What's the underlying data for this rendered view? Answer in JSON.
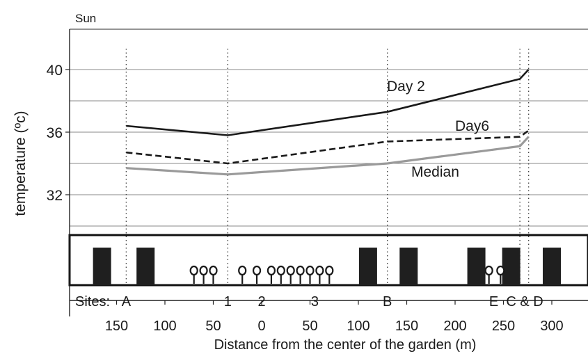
{
  "chart_data": {
    "type": "line",
    "panel_label": "Sun",
    "xlabel": "Distance from the center of the garden (m)",
    "ylabel": "temperature (ºc)",
    "ylim": [
      28,
      42
    ],
    "y_ticks": [
      32,
      36,
      40
    ],
    "x_ticks": [
      {
        "label": "150",
        "value": -150
      },
      {
        "label": "100",
        "value": -100
      },
      {
        "label": "50",
        "value": -50
      },
      {
        "label": "0",
        "value": 0
      },
      {
        "label": "50",
        "value": 50
      },
      {
        "label": "100",
        "value": 100
      },
      {
        "label": "150",
        "value": 150
      },
      {
        "label": "200",
        "value": 200
      },
      {
        "label": "250",
        "value": 250
      },
      {
        "label": "300",
        "value": 300
      }
    ],
    "grid": "horizontal",
    "sites_label": "Sites:",
    "sites": [
      {
        "name": "A",
        "x": -140
      },
      {
        "name": "1",
        "x": -35
      },
      {
        "name": "2",
        "x": 0
      },
      {
        "name": "3",
        "x": 55
      },
      {
        "name": "B",
        "x": 130
      },
      {
        "name": "E",
        "x": 240
      },
      {
        "name": "C & D",
        "x": 272
      }
    ],
    "site_lines_x": [
      -140,
      -35,
      130,
      267,
      276
    ],
    "series": [
      {
        "name": "Day 2",
        "style": "solid",
        "color": "#1a1a1a",
        "points": [
          [
            -140,
            36.4
          ],
          [
            -35,
            35.8
          ],
          [
            130,
            37.3
          ],
          [
            267,
            39.4
          ],
          [
            276,
            40.0
          ]
        ]
      },
      {
        "name": "Day6",
        "style": "dashed",
        "color": "#1a1a1a",
        "points": [
          [
            -140,
            34.7
          ],
          [
            -35,
            34.0
          ],
          [
            130,
            35.4
          ],
          [
            267,
            35.7
          ],
          [
            276,
            36.1
          ]
        ]
      },
      {
        "name": "Median",
        "style": "solid",
        "color": "#9a9a9a",
        "points": [
          [
            -140,
            33.7
          ],
          [
            -35,
            33.3
          ],
          [
            130,
            34.0
          ],
          [
            267,
            35.1
          ],
          [
            276,
            35.7
          ]
        ]
      }
    ],
    "series_labels": [
      "Day 2",
      "Day6",
      "Median"
    ],
    "buildings_x": [
      -165,
      -120,
      110,
      152,
      222,
      258,
      300
    ],
    "trees_x": [
      -70,
      -60,
      -50,
      -20,
      -5,
      10,
      20,
      30,
      40,
      50,
      60,
      70,
      235,
      247
    ]
  }
}
